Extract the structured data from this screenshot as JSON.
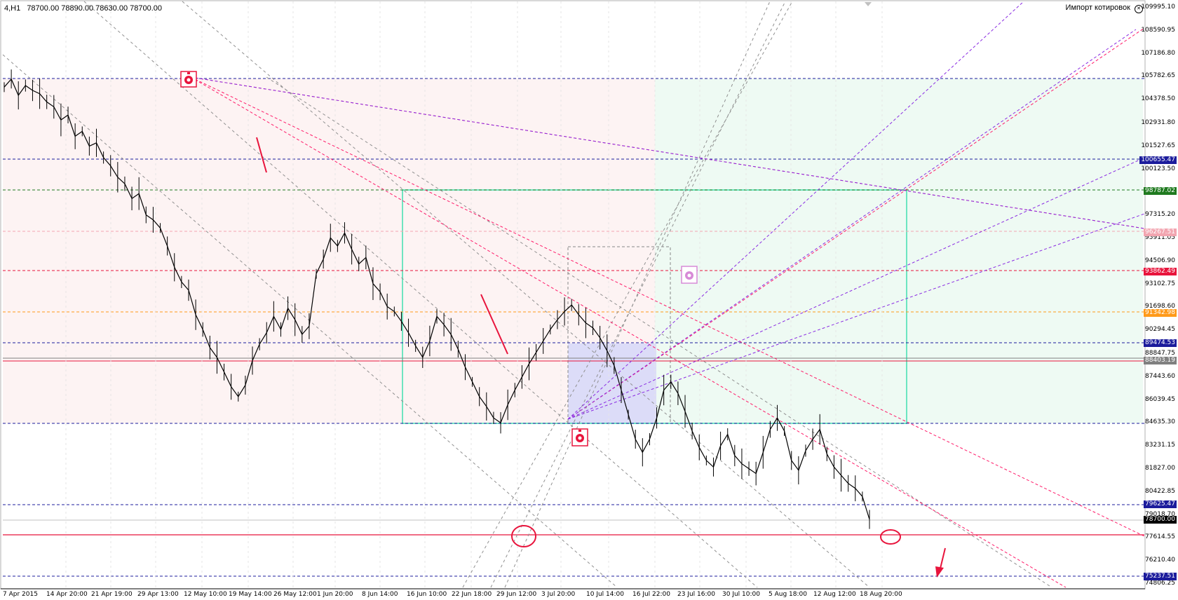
{
  "header": {
    "symbol_tf": "4,H1",
    "ohlc": "78700.00 78890.00 78630.00 78700.00",
    "import_label": "Импорт котировок",
    "import_icon": "close-circle-icon"
  },
  "price_scale": [
    {
      "v": 109995.1,
      "t": "109995.10"
    },
    {
      "v": 108590.95,
      "t": "108590.95"
    },
    {
      "v": 107186.8,
      "t": "107186.80"
    },
    {
      "v": 105782.65,
      "t": "105782.65"
    },
    {
      "v": 104378.5,
      "t": "104378.50"
    },
    {
      "v": 102931.8,
      "t": "102931.80"
    },
    {
      "v": 101527.65,
      "t": "101527.65"
    },
    {
      "v": 100123.5,
      "t": "100123.50"
    },
    {
      "v": 97315.2,
      "t": "97315.20"
    },
    {
      "v": 95911.05,
      "t": "95911.05"
    },
    {
      "v": 94506.9,
      "t": "94506.90"
    },
    {
      "v": 93102.75,
      "t": "93102.75"
    },
    {
      "v": 91698.6,
      "t": "91698.60"
    },
    {
      "v": 90294.45,
      "t": "90294.45"
    },
    {
      "v": 88847.75,
      "t": "88847.75"
    },
    {
      "v": 87443.6,
      "t": "87443.60"
    },
    {
      "v": 86039.45,
      "t": "86039.45"
    },
    {
      "v": 84635.3,
      "t": "84635.30"
    },
    {
      "v": 83231.15,
      "t": "83231.15"
    },
    {
      "v": 81827.0,
      "t": "81827.00"
    },
    {
      "v": 80422.85,
      "t": "80422.85"
    },
    {
      "v": 79018.7,
      "t": "79018.70"
    },
    {
      "v": 77614.55,
      "t": "77614.55"
    },
    {
      "v": 76210.4,
      "t": "76210.40"
    },
    {
      "v": 74806.25,
      "t": "74806.25"
    }
  ],
  "price_tags": [
    {
      "v": 100655.47,
      "t": "100655.47",
      "bg": "#1c1c9c",
      "fg": "#ffffff"
    },
    {
      "v": 98787.02,
      "t": "98787.02",
      "bg": "#1f7a1f",
      "fg": "#ffffff"
    },
    {
      "v": 96267.51,
      "t": "96267.51",
      "bg": "#f2a5b0",
      "fg": "#ffffff"
    },
    {
      "v": 93862.49,
      "t": "93862.49",
      "bg": "#e8143c",
      "fg": "#ffffff"
    },
    {
      "v": 91342.98,
      "t": "91342.98",
      "bg": "#ff9a1a",
      "fg": "#ffffff"
    },
    {
      "v": 89474.53,
      "t": "89474.53",
      "bg": "#1c1c9c",
      "fg": "#ffffff"
    },
    {
      "v": 88403.19,
      "t": "88403.19",
      "bg": "#808080",
      "fg": "#ffffff"
    },
    {
      "v": 79625.47,
      "t": "79625.47",
      "bg": "#1c1c9c",
      "fg": "#ffffff"
    },
    {
      "v": 78700.0,
      "t": "78700.00",
      "bg": "#000000",
      "fg": "#ffffff"
    },
    {
      "v": 75237.51,
      "t": "75237.51",
      "bg": "#1c1c9c",
      "fg": "#ffffff"
    }
  ],
  "time_labels": [
    "7 Apr 2015",
    "14 Apr 20:00",
    "21 Apr 19:00",
    "29 Apr 13:00",
    "12 May 10:00",
    "19 May 14:00",
    "26 May 12:00",
    "1 Jun 20:00",
    "8 Jun 14:00",
    "16 Jun 10:00",
    "22 Jun 18:00",
    "29 Jun 12:00",
    "3 Jul 20:00",
    "10 Jul 14:00",
    "16 Jul 22:00",
    "23 Jul 16:00",
    "30 Jul 10:00",
    "5 Aug 18:00",
    "12 Aug 12:00",
    "18 Aug 20:00"
  ],
  "colors": {
    "blue_level": "#1c1c9c",
    "red_level": "#e8143c",
    "box_green": "#40e0b0",
    "fan_violet": "#8a2be2",
    "fan_pink": "#ff1c6a",
    "candles": "#000000"
  },
  "price_series": [
    105100,
    105600,
    104600,
    105200,
    104900,
    104700,
    104200,
    103900,
    103100,
    103400,
    102100,
    102400,
    101500,
    101700,
    100800,
    100300,
    99600,
    99200,
    98300,
    98600,
    97300,
    97000,
    96500,
    95400,
    94100,
    93200,
    92700,
    91200,
    90300,
    89200,
    88600,
    87700,
    86800,
    86200,
    86900,
    88400,
    89400,
    90100,
    91100,
    90300,
    91600,
    90900,
    90000,
    90500,
    93700,
    94600,
    95900,
    95400,
    96200,
    95200,
    94300,
    94700,
    93100,
    92600,
    91700,
    91400,
    90800,
    90100,
    89300,
    88600,
    89600,
    91100,
    90600,
    90000,
    89100,
    88000,
    87100,
    86200,
    85600,
    84900,
    84600,
    85700,
    86600,
    87400,
    88200,
    88900,
    89600,
    90300,
    90900,
    91400,
    91800,
    91200,
    90700,
    90400,
    89800,
    89000,
    88100,
    86600,
    85100,
    83600,
    82800,
    83600,
    84900,
    86600,
    87100,
    86400,
    85300,
    84100,
    83100,
    82300,
    81900,
    83200,
    83900,
    82600,
    82100,
    81800,
    81500,
    82800,
    84200,
    84900,
    84100,
    82300,
    81700,
    82900,
    83600,
    84200,
    82700,
    81900,
    81400,
    80900,
    80600,
    80100,
    78700
  ]
}
